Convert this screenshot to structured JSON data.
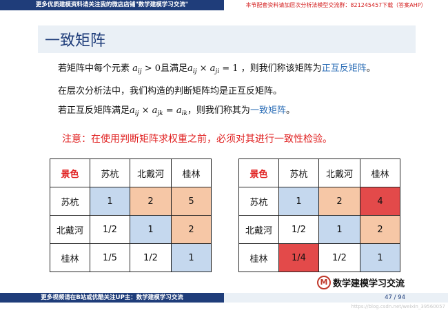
{
  "top_banner": {
    "left": "更多优质建模资料请关注我的微店店铺\"数学建模学习交流\"",
    "right": "本节配套资料请加层次分析法模型交流群：821245457下载（答案AHP）"
  },
  "slide_title": "一致矩阵",
  "lines": {
    "l1_a": "若矩阵中每个元素",
    "l1_b": "且满足",
    "l1_c": "，则我们称该矩阵为",
    "l1_term": "正互反矩阵",
    "l1_end": "。",
    "l2": "在层次分析法中，我们构造的判断矩阵均是正互反矩阵。",
    "l3_a": "若正互反矩阵满足",
    "l3_b": "，则我们称其为",
    "l3_term": "一致矩阵",
    "l3_end": "。"
  },
  "note": "注意：在使用判断矩阵求权重之前，必须对其进行一致性检验。",
  "colors": {
    "banner_blue": "#1f3d7a",
    "highlight_blue": "#2e6fb7",
    "note_red": "#e02020",
    "cell_blue": "#c5d8ee",
    "cell_peach": "#f6c7a6",
    "cell_red": "#e34a4a"
  },
  "tables": [
    {
      "corner": "景色",
      "headers": [
        "苏杭",
        "北戴河",
        "桂林"
      ],
      "rows": [
        {
          "label": "苏杭",
          "cells": [
            "1",
            "2",
            "5"
          ],
          "colors": [
            "blue",
            "peach",
            "peach"
          ]
        },
        {
          "label": "北戴河",
          "cells": [
            "1/2",
            "1",
            "2"
          ],
          "colors": [
            "none",
            "blue",
            "peach"
          ]
        },
        {
          "label": "桂林",
          "cells": [
            "1/5",
            "1/2",
            "1"
          ],
          "colors": [
            "none",
            "none",
            "blue"
          ]
        }
      ]
    },
    {
      "corner": "景色",
      "headers": [
        "苏杭",
        "北戴河",
        "桂林"
      ],
      "rows": [
        {
          "label": "苏杭",
          "cells": [
            "1",
            "2",
            "4"
          ],
          "colors": [
            "blue",
            "peach",
            "red"
          ]
        },
        {
          "label": "北戴河",
          "cells": [
            "1/2",
            "1",
            "2"
          ],
          "colors": [
            "none",
            "blue",
            "peach"
          ]
        },
        {
          "label": "桂林",
          "cells": [
            "1/4",
            "1/2",
            "1"
          ],
          "colors": [
            "red",
            "none",
            "blue"
          ]
        }
      ]
    }
  ],
  "logo": {
    "mark": "M",
    "name": "数学建模学习交流"
  },
  "bottom_banner": {
    "left": "更多视频请在B站或优酷关注UP主：数学建模学习交流",
    "page": "47 / 94"
  },
  "watermark": "https://blog.csdn.net/weixin_39560057"
}
